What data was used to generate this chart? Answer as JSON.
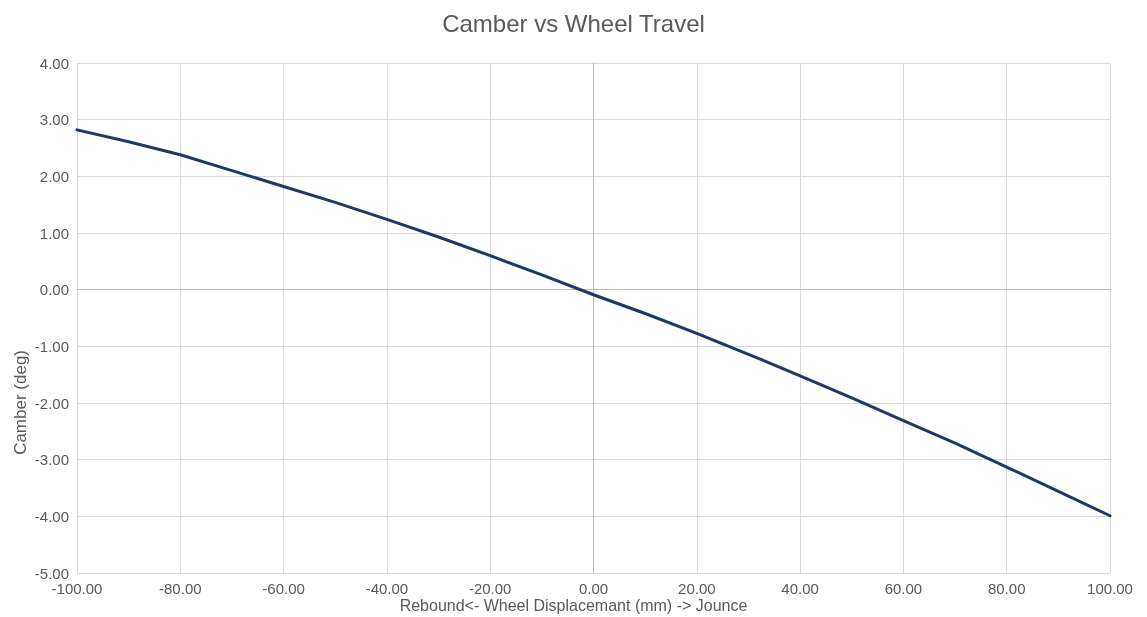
{
  "chart_data": {
    "type": "line",
    "title": "Camber vs Wheel Travel",
    "xlabel": "Rebound<- Wheel Displacemant (mm) -> Jounce",
    "ylabel": "Camber (deg)",
    "x": [
      -100,
      -90,
      -80,
      -70,
      -60,
      -50,
      -40,
      -30,
      -20,
      -10,
      0,
      10,
      20,
      30,
      40,
      50,
      60,
      70,
      80,
      90,
      100
    ],
    "series": [
      {
        "color": "#203864",
        "values": [
          2.82,
          2.61,
          2.38,
          2.1,
          1.82,
          1.54,
          1.24,
          0.93,
          0.6,
          0.26,
          -0.09,
          -0.42,
          -0.77,
          -1.14,
          -1.52,
          -1.91,
          -2.31,
          -2.71,
          -3.13,
          -3.56,
          -3.99
        ]
      }
    ],
    "xlim": [
      -100,
      100
    ],
    "xticks": [
      {
        "value": -100,
        "label": "-100.00"
      },
      {
        "value": -80,
        "label": "-80.00"
      },
      {
        "value": -60,
        "label": "-60.00"
      },
      {
        "value": -40,
        "label": "-40.00"
      },
      {
        "value": -20,
        "label": "-20.00"
      },
      {
        "value": 0,
        "label": "0.00"
      },
      {
        "value": 20,
        "label": "20.00"
      },
      {
        "value": 40,
        "label": "40.00"
      },
      {
        "value": 60,
        "label": "60.00"
      },
      {
        "value": 80,
        "label": "80.00"
      },
      {
        "value": 100,
        "label": "100.00"
      }
    ],
    "ylim": [
      -5,
      4
    ],
    "yticks": [
      {
        "value": -5,
        "label": "-5.00"
      },
      {
        "value": -4,
        "label": "-4.00"
      },
      {
        "value": -3,
        "label": "-3.00"
      },
      {
        "value": -2,
        "label": "-2.00"
      },
      {
        "value": -1,
        "label": "-1.00"
      },
      {
        "value": 0,
        "label": "0.00"
      },
      {
        "value": 1,
        "label": "1.00"
      },
      {
        "value": 2,
        "label": "2.00"
      },
      {
        "value": 3,
        "label": "3.00"
      },
      {
        "value": 4,
        "label": "4.00"
      }
    ],
    "grid": true,
    "marker": "none",
    "line_style": "solid"
  }
}
